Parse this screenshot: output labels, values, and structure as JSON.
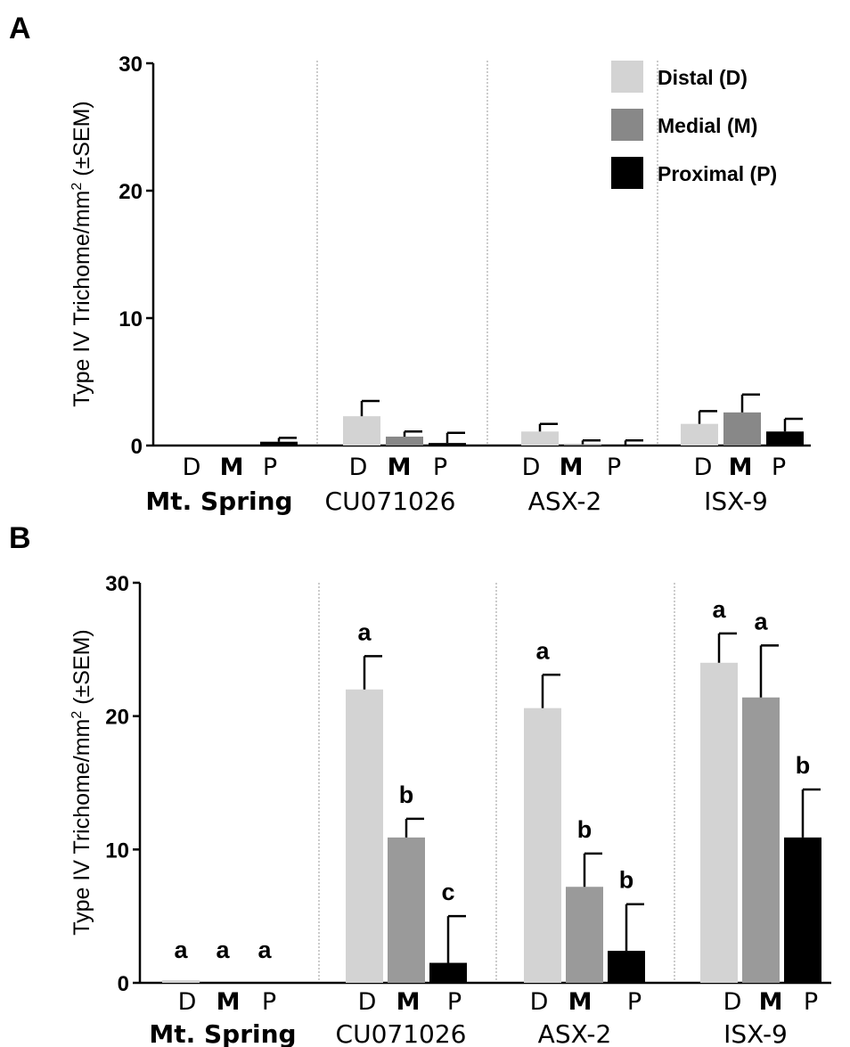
{
  "chart_data": [
    {
      "panel": "A",
      "type": "bar",
      "ylabel": "Type IV Trichome/mm² (±SEM)",
      "ylabel_main": "Type IV Trichome/mm",
      "ylabel_sup": "2",
      "ylabel_tail": " (±SEM)",
      "ylim": [
        0,
        30
      ],
      "yticks": [
        "0",
        "10",
        "20",
        "30"
      ],
      "groups": [
        "Mt. Spring",
        "CU071026",
        "ASX-2",
        "ISX-9"
      ],
      "positions": [
        "D",
        "M",
        "P"
      ],
      "series": [
        {
          "name": "Distal (D)",
          "values": [
            0.0,
            2.3,
            1.1,
            1.7
          ],
          "errors": [
            0.0,
            1.2,
            0.6,
            1.0
          ]
        },
        {
          "name": "Medial (M)",
          "values": [
            0.0,
            0.7,
            0.1,
            2.6
          ],
          "errors": [
            0.0,
            0.4,
            0.3,
            1.4
          ]
        },
        {
          "name": "Proximal (P)",
          "values": [
            0.3,
            0.2,
            0.0,
            1.1
          ],
          "errors": [
            0.3,
            0.8,
            0.4,
            1.0
          ]
        }
      ],
      "legend": {
        "placement": "top-right"
      },
      "grid": false
    },
    {
      "panel": "B",
      "type": "bar",
      "ylabel": "Type IV Trichome/mm² (±SEM)",
      "ylabel_main": "Type IV Trichome/mm",
      "ylabel_sup": "2",
      "ylabel_tail": " (±SEM)",
      "ylim": [
        0,
        30
      ],
      "yticks": [
        "0",
        "10",
        "20",
        "30"
      ],
      "groups": [
        "Mt. Spring",
        "CU071026",
        "ASX-2",
        "ISX-9"
      ],
      "positions": [
        "D",
        "M",
        "P"
      ],
      "series": [
        {
          "name": "Distal (D)",
          "values": [
            0.2,
            22.0,
            20.6,
            24.0
          ],
          "errors": [
            0.0,
            2.5,
            2.5,
            2.2
          ],
          "letters": [
            "a",
            "a",
            "a",
            "a"
          ]
        },
        {
          "name": "Medial (M)",
          "values": [
            0.0,
            10.9,
            7.2,
            21.4
          ],
          "errors": [
            0.0,
            1.4,
            2.5,
            3.9
          ],
          "letters": [
            "a",
            "b",
            "b",
            "a"
          ]
        },
        {
          "name": "Proximal (P)",
          "values": [
            0.0,
            1.5,
            2.4,
            10.9
          ],
          "errors": [
            0.0,
            3.5,
            3.5,
            3.6
          ],
          "letters": [
            "a",
            "c",
            "b",
            "b"
          ]
        }
      ],
      "grid": false
    }
  ],
  "colors": {
    "distal": "#d3d3d3",
    "medial_a": "#888888",
    "medial_b": "#9a9a9a",
    "proximal": "#000000",
    "axis": "#000000",
    "separator": "#aaaaaa"
  }
}
